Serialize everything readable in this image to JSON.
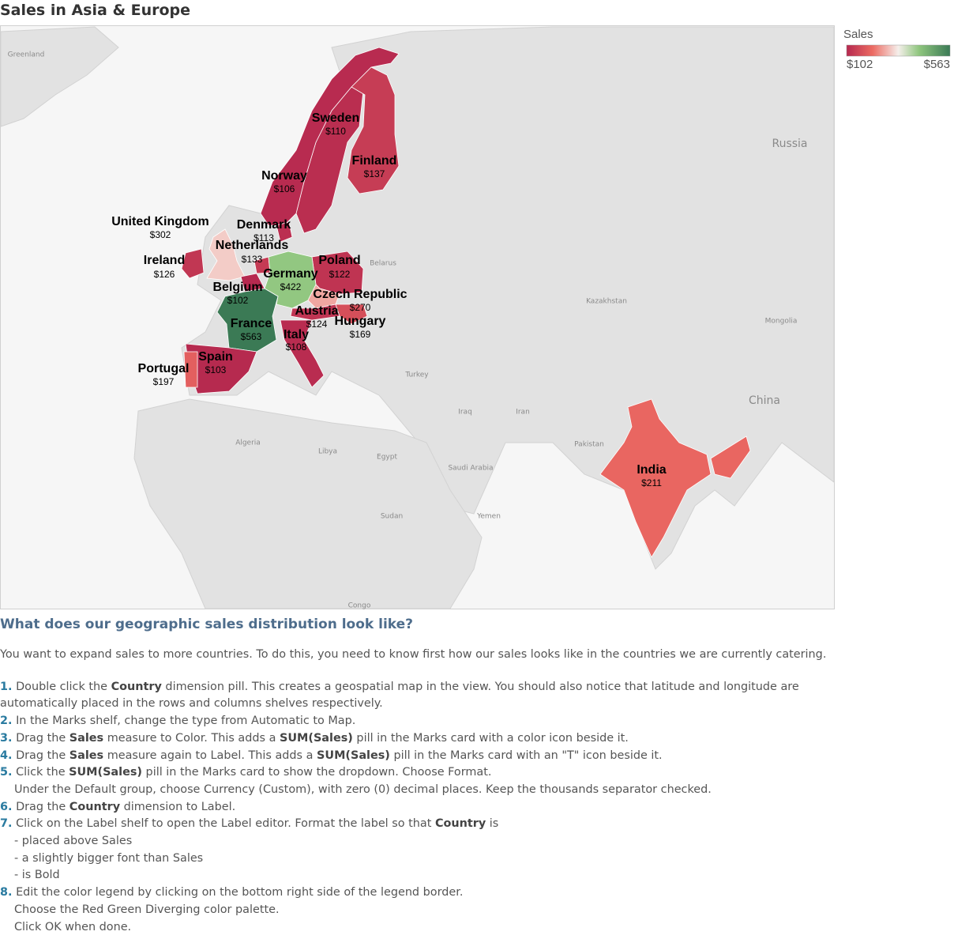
{
  "title": "Sales in Asia & Europe",
  "legend": {
    "title": "Sales",
    "min": {
      "value": 102,
      "label": "$102"
    },
    "max": {
      "value": 563,
      "label": "$563"
    }
  },
  "countries": [
    {
      "name": "Sweden",
      "sales": 110,
      "sales_label": "$110"
    },
    {
      "name": "Finland",
      "sales": 137,
      "sales_label": "$137"
    },
    {
      "name": "Norway",
      "sales": 106,
      "sales_label": "$106"
    },
    {
      "name": "United Kingdom",
      "sales": 302,
      "sales_label": "$302"
    },
    {
      "name": "Denmark",
      "sales": 113,
      "sales_label": "$113"
    },
    {
      "name": "Netherlands",
      "sales": 133,
      "sales_label": "$133"
    },
    {
      "name": "Ireland",
      "sales": 126,
      "sales_label": "$126"
    },
    {
      "name": "Poland",
      "sales": 122,
      "sales_label": "$122"
    },
    {
      "name": "Germany",
      "sales": 422,
      "sales_label": "$422"
    },
    {
      "name": "Belgium",
      "sales": 102,
      "sales_label": "$102"
    },
    {
      "name": "Czech Republic",
      "sales": 270,
      "sales_label": "$270"
    },
    {
      "name": "Austria",
      "sales": 124,
      "sales_label": "$124"
    },
    {
      "name": "Hungary",
      "sales": 169,
      "sales_label": "$169"
    },
    {
      "name": "France",
      "sales": 563,
      "sales_label": "$563"
    },
    {
      "name": "Italy",
      "sales": 108,
      "sales_label": "$108"
    },
    {
      "name": "Spain",
      "sales": 103,
      "sales_label": "$103"
    },
    {
      "name": "Portugal",
      "sales": 197,
      "sales_label": "$197"
    },
    {
      "name": "India",
      "sales": 211,
      "sales_label": "$211"
    }
  ],
  "map_labels": [
    "Greenland",
    "Russia",
    "Belarus",
    "Kazakhstan",
    "Mongolia",
    "China",
    "Turkey",
    "Iraq",
    "Iran",
    "Pakistan",
    "Algeria",
    "Libya",
    "Egypt",
    "Saudi Arabia",
    "Yemen",
    "Sudan",
    "Congo"
  ],
  "instructions": {
    "heading": "What does our geographic sales distribution look like?",
    "intro": "You want to expand sales to more countries. To do this, you need to know first how our sales looks like in the countries we are currently catering.",
    "steps": [
      {
        "number": "1.",
        "lines": [
          [
            {
              "text": "Double click the "
            },
            {
              "bold": "Country"
            },
            {
              "text": " dimension pill. This creates a geospatial map in the view. You should also notice that latitude and longitude are automatically placed in the rows and columns shelves respectively."
            }
          ]
        ]
      },
      {
        "number": "2.",
        "lines": [
          [
            {
              "text": "In the Marks shelf, change the type from Automatic to Map."
            }
          ]
        ]
      },
      {
        "number": "3.",
        "lines": [
          [
            {
              "text": "Drag the "
            },
            {
              "bold": "Sales"
            },
            {
              "text": " measure to Color. This adds a "
            },
            {
              "bold": "SUM(Sales)"
            },
            {
              "text": " pill in the Marks card with a color icon beside it."
            }
          ]
        ]
      },
      {
        "number": "4.",
        "lines": [
          [
            {
              "text": "Drag the "
            },
            {
              "bold": "Sales"
            },
            {
              "text": " measure again to Label. This adds a "
            },
            {
              "bold": "SUM(Sales)"
            },
            {
              "text": " pill in the Marks card with an \"T\" icon beside it."
            }
          ]
        ]
      },
      {
        "number": "5.",
        "lines": [
          [
            {
              "text": "Click the "
            },
            {
              "bold": "SUM(Sales)"
            },
            {
              "text": " pill in the Marks card to show the dropdown. Choose Format."
            }
          ],
          [
            {
              "text": "Under the Default group, choose Currency (Custom), with zero (0) decimal places. Keep the thousands separator checked."
            }
          ]
        ]
      },
      {
        "number": "6.",
        "lines": [
          [
            {
              "text": "Drag the "
            },
            {
              "bold": "Country"
            },
            {
              "text": " dimension to Label."
            }
          ]
        ]
      },
      {
        "number": "7.",
        "lines": [
          [
            {
              "text": "Click on the Label shelf to open the Label editor. Format the label so that "
            },
            {
              "bold": "Country"
            },
            {
              "text": " is"
            }
          ],
          [
            {
              "text": "- placed above Sales"
            }
          ],
          [
            {
              "text": "- a slightly bigger font than Sales"
            }
          ],
          [
            {
              "text": "- is Bold"
            }
          ]
        ]
      },
      {
        "number": "8.",
        "lines": [
          [
            {
              "text": "Edit the color legend by clicking on the bottom right side of the legend border."
            }
          ],
          [
            {
              "text": "Choose the Red Green Diverging color palette."
            }
          ],
          [
            {
              "text": "Click OK when done."
            }
          ]
        ]
      }
    ]
  }
}
